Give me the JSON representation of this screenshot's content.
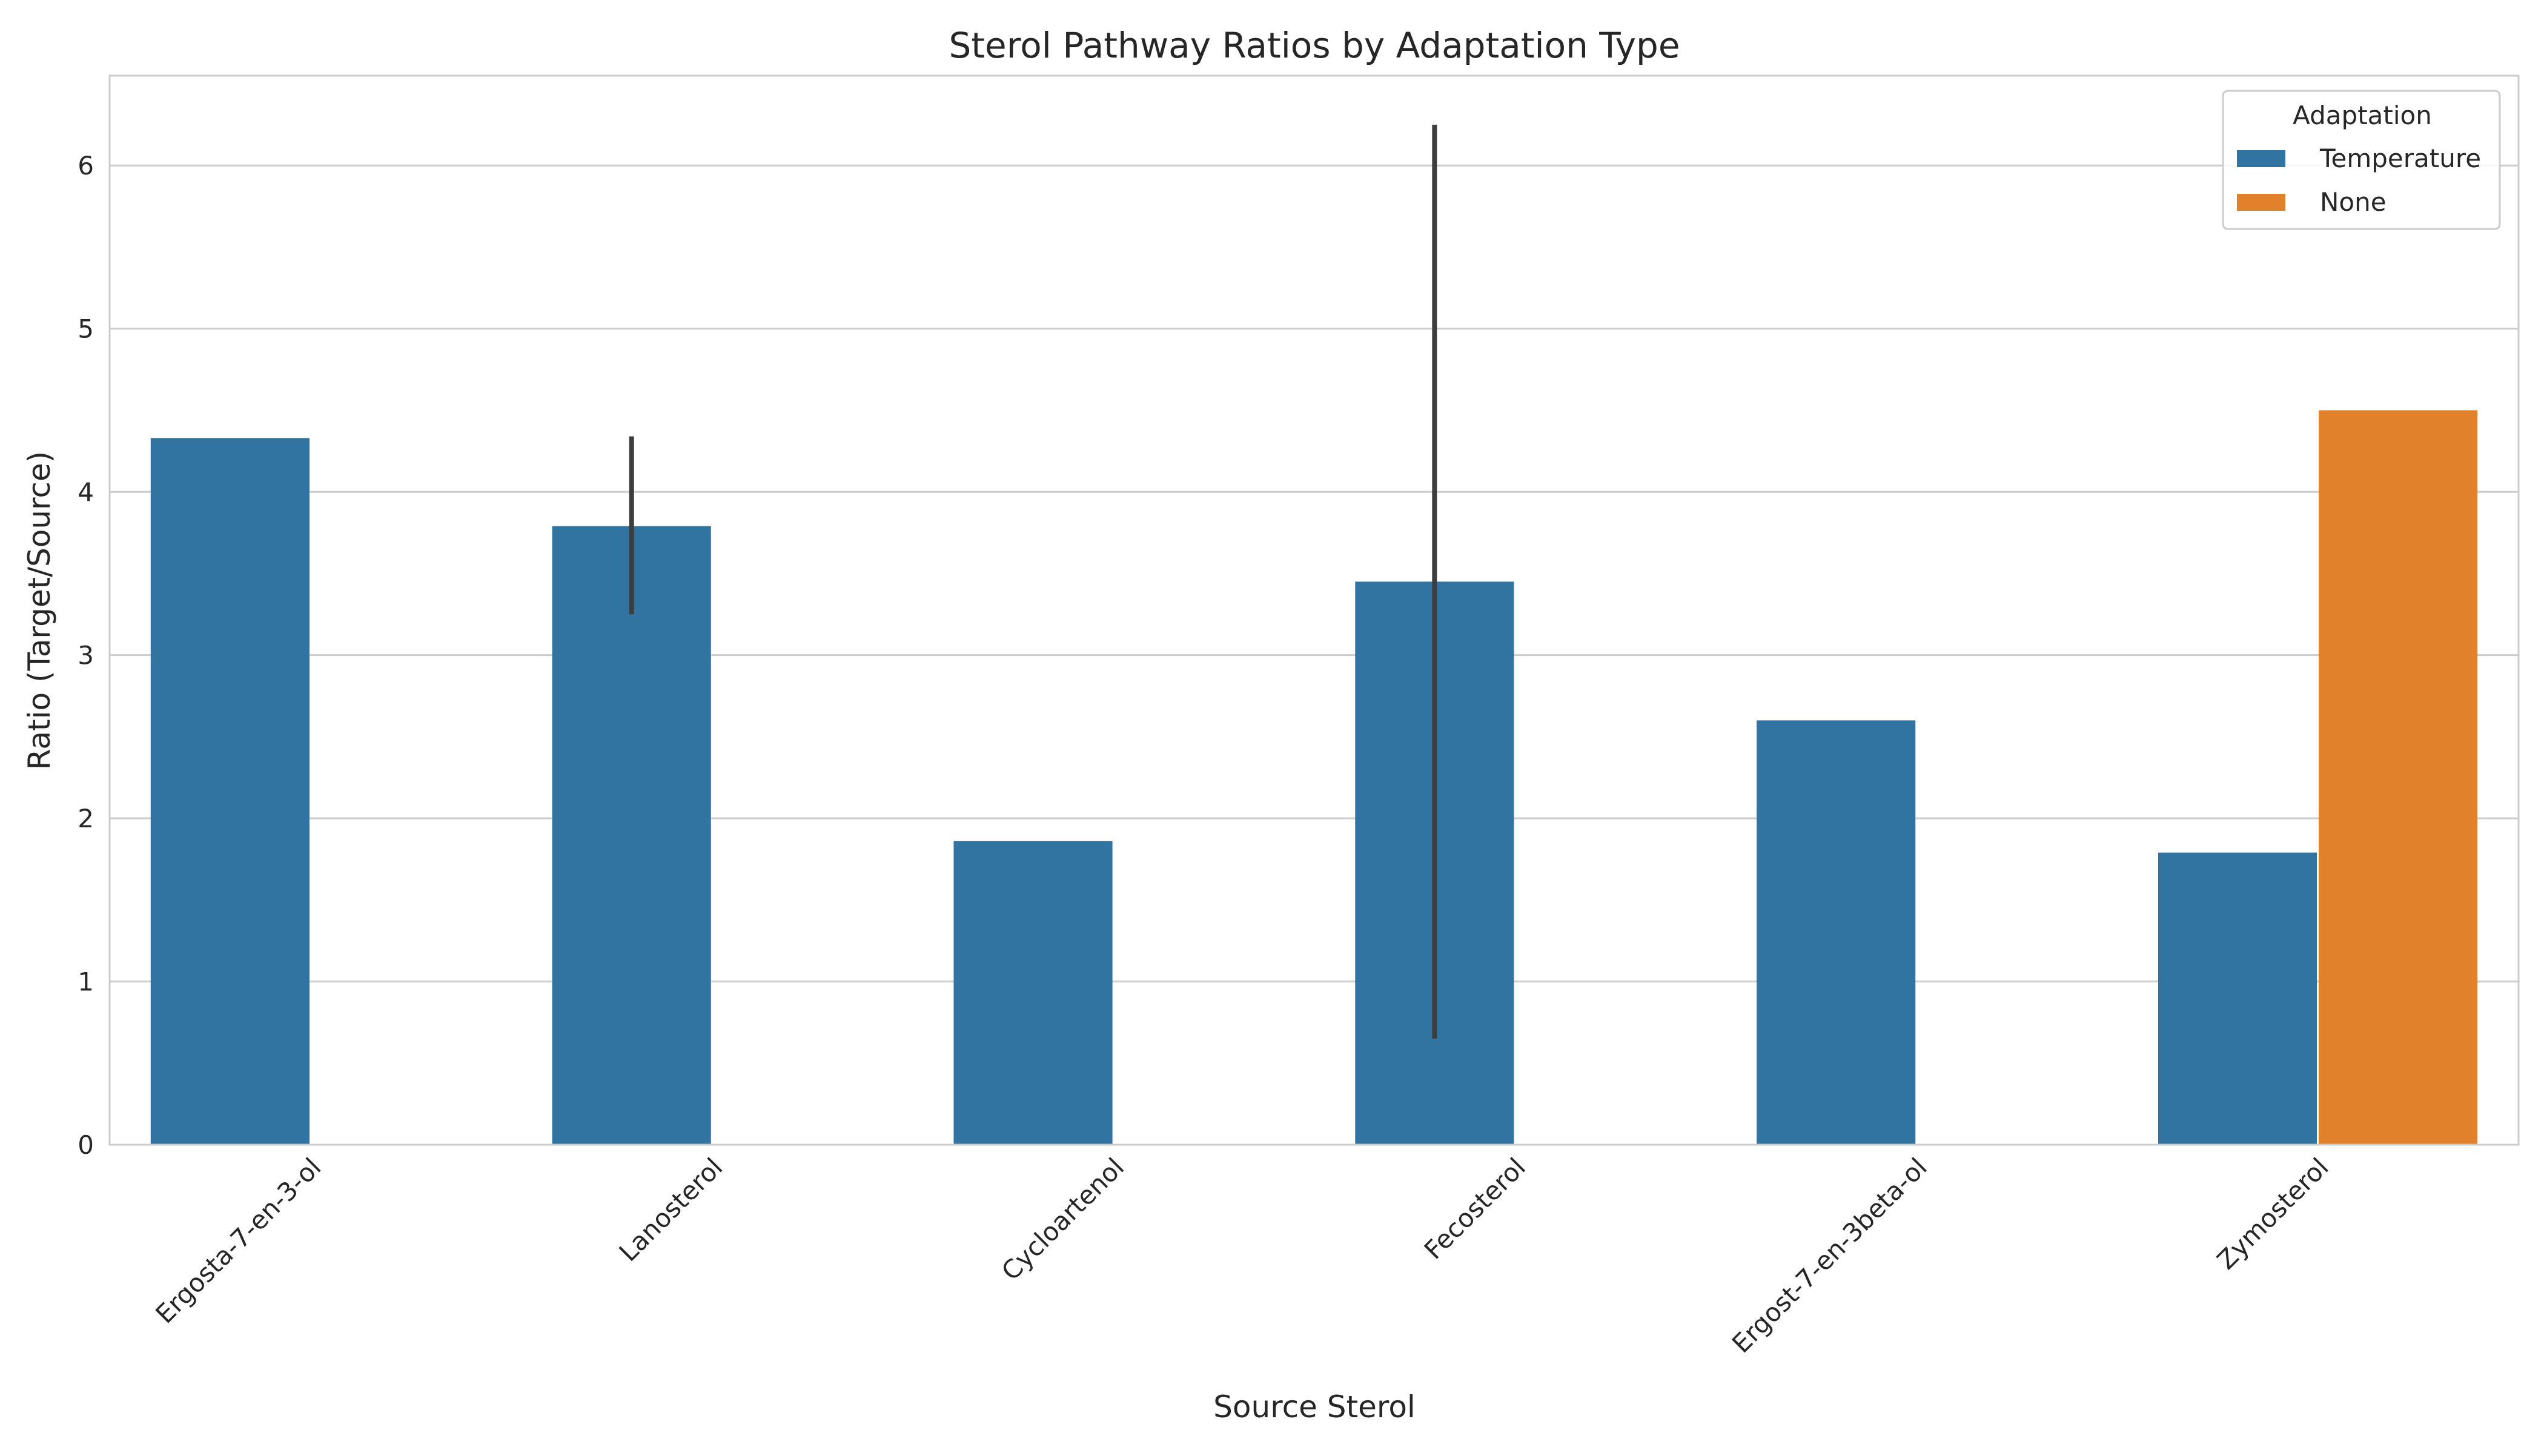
{
  "chart_data": {
    "type": "bar",
    "title": "Sterol Pathway Ratios by Adaptation Type",
    "xlabel": "Source Sterol",
    "ylabel": "Ratio (Target/Source)",
    "ylim": [
      0,
      6.55
    ],
    "yticks": [
      0,
      1,
      2,
      3,
      4,
      5,
      6
    ],
    "grid": true,
    "legend_title": "Adaptation",
    "legend_position": "top-right",
    "categories": [
      "Ergosta-7-en-3-ol",
      "Lanosterol",
      "Cycloartenol",
      "Fecosterol",
      "Ergost-7-en-3beta-ol",
      "Zymosterol"
    ],
    "series": [
      {
        "name": "Temperature",
        "color": "#3274a1",
        "values": [
          4.33,
          3.79,
          1.86,
          3.45,
          2.6,
          1.79
        ],
        "error_low": [
          null,
          3.25,
          null,
          0.65,
          null,
          null
        ],
        "error_high": [
          null,
          4.34,
          null,
          6.25,
          null,
          null
        ]
      },
      {
        "name": "None",
        "color": "#e1812c",
        "values": [
          null,
          null,
          null,
          null,
          null,
          4.5
        ],
        "error_low": [
          null,
          null,
          null,
          null,
          null,
          null
        ],
        "error_high": [
          null,
          null,
          null,
          null,
          null,
          null
        ]
      }
    ],
    "error_bar_color": "#3d3d3d"
  }
}
